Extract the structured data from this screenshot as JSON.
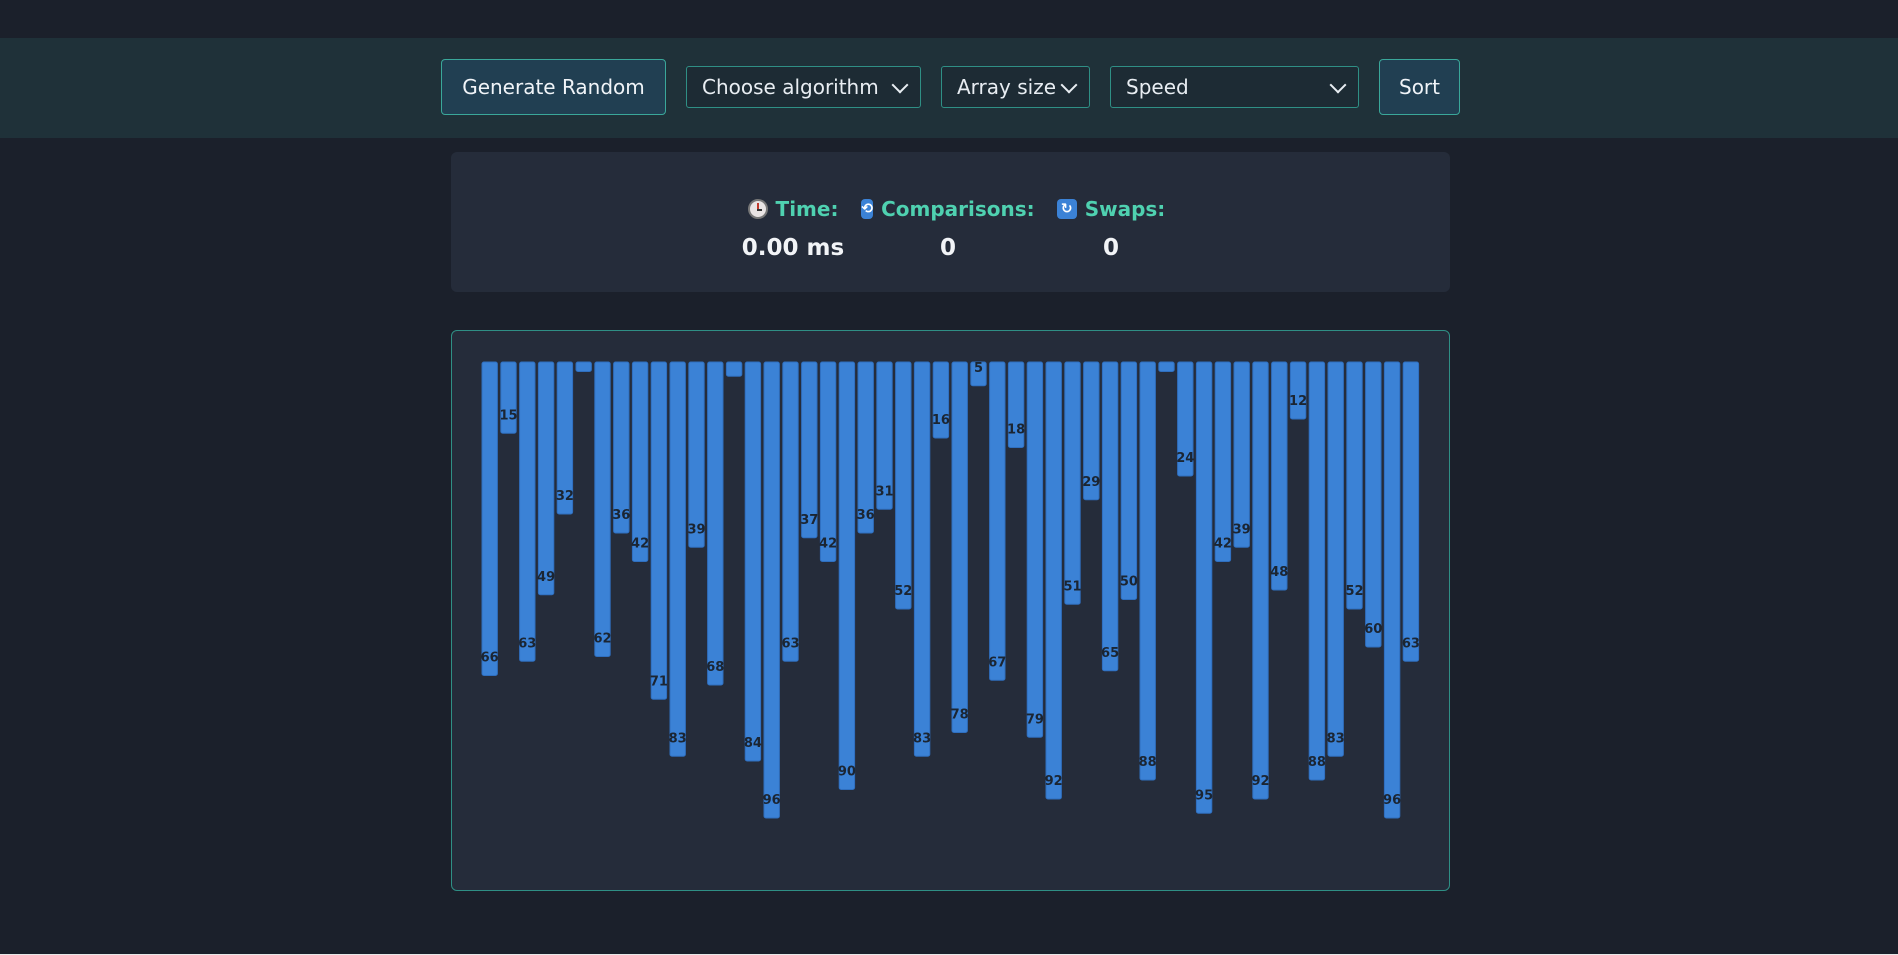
{
  "toolbar": {
    "generate_label": "Generate Random",
    "algorithm_label": "Choose algorithm",
    "array_size_label": "Array size",
    "speed_label": "Speed",
    "sort_label": "Sort"
  },
  "stats": {
    "time_label": "Time:",
    "time_value": "0.00 ms",
    "comparisons_label": "Comparisons:",
    "comparisons_value": "0",
    "swaps_label": "Swaps:",
    "swaps_value": "0",
    "icons": [
      "clock-icon",
      "repeat-icon",
      "refresh-icon"
    ]
  },
  "colors": {
    "bar": "#3b82d6",
    "bar_edge": "#2f6fbf",
    "accent": "#4fd1b0",
    "background": "#1b202b",
    "panel": "#252c3a"
  },
  "chart_data": {
    "type": "bar",
    "values": [
      66,
      15,
      63,
      49,
      32,
      2,
      62,
      36,
      42,
      71,
      83,
      39,
      68,
      3,
      84,
      96,
      63,
      37,
      42,
      90,
      36,
      31,
      52,
      83,
      16,
      78,
      5,
      67,
      18,
      79,
      92,
      51,
      29,
      65,
      50,
      88,
      2,
      24,
      95,
      42,
      39,
      92,
      48,
      12,
      88,
      83,
      52,
      60,
      96,
      63
    ],
    "labels": [
      "66",
      "15",
      "63",
      "49",
      "32",
      "",
      "62",
      "36",
      "42",
      "71",
      "83",
      "39",
      "68",
      "",
      "84",
      "96",
      "63",
      "37",
      "42",
      "90",
      "36",
      "31",
      "52",
      "83",
      "16",
      "78",
      "5",
      "67",
      "18",
      "79",
      "92",
      "51",
      "29",
      "65",
      "50",
      "88",
      "",
      "24",
      "95",
      "42",
      "39",
      "92",
      "48",
      "12",
      "88",
      "83",
      "52",
      "60",
      "96",
      "63"
    ],
    "ylim": [
      0,
      100
    ]
  }
}
